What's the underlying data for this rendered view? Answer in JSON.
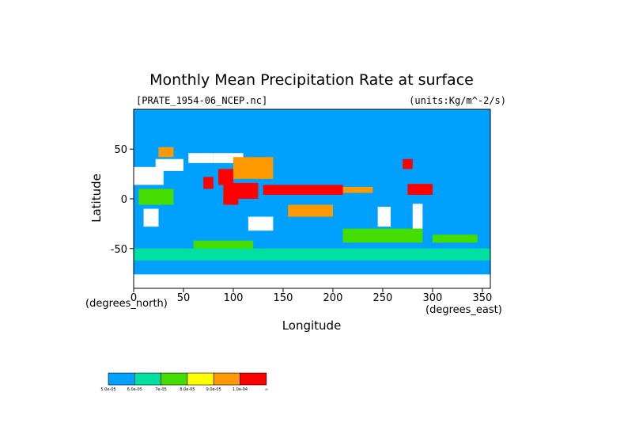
{
  "chart_data": {
    "type": "heatmap",
    "title": "Monthly Mean Precipitation Rate at surface",
    "source_file": "[PRATE_1954-06_NCEP.nc]",
    "units": "(units:Kg/m^-2/s)",
    "xlabel": "Longitude",
    "ylabel": "Latitude",
    "x_unit_label": "(degrees_east)",
    "y_unit_label": "(degrees_north)",
    "xlim": [
      0,
      358
    ],
    "ylim": [
      -90,
      90
    ],
    "x_ticks": [
      "0",
      "50",
      "100",
      "150",
      "200",
      "250",
      "300",
      "350"
    ],
    "x_tick_values": [
      0,
      50,
      100,
      150,
      200,
      250,
      300,
      350
    ],
    "y_ticks": [
      "50",
      "0",
      "-50"
    ],
    "y_tick_values": [
      50,
      0,
      -50
    ],
    "background_color": "#00a0ff",
    "levels": [
      {
        "label": "5.0e-05",
        "color": "#00a0ff"
      },
      {
        "label": "6.0e-05",
        "color": "#00e0a0"
      },
      {
        "label": "7e-05",
        "color": "#44dd00"
      },
      {
        "label": "8.0e-05",
        "color": "#ffff00"
      },
      {
        "label": "9.0e-05",
        "color": "#ff9900"
      },
      {
        "label": "1.0e-04",
        "color": "#ff0000"
      }
    ],
    "legend_end_label": "∞",
    "regions": [
      {
        "x": [
          22,
          50
        ],
        "y": [
          28,
          40
        ],
        "level": "none"
      },
      {
        "x": [
          -5,
          30
        ],
        "y": [
          14,
          32
        ],
        "level": "none"
      },
      {
        "x": [
          55,
          80
        ],
        "y": [
          36,
          46
        ],
        "level": "none"
      },
      {
        "x": [
          80,
          110
        ],
        "y": [
          36,
          46
        ],
        "level": "none"
      },
      {
        "x": [
          10,
          25
        ],
        "y": [
          -28,
          -10
        ],
        "level": "none"
      },
      {
        "x": [
          115,
          140
        ],
        "y": [
          -32,
          -18
        ],
        "level": "none"
      },
      {
        "x": [
          245,
          258
        ],
        "y": [
          -28,
          -8
        ],
        "level": "none"
      },
      {
        "x": [
          280,
          290
        ],
        "y": [
          -30,
          -5
        ],
        "level": "none"
      },
      {
        "x": [
          0,
          358
        ],
        "y": [
          -90,
          -76
        ],
        "level": "none"
      },
      {
        "x": [
          5,
          40
        ],
        "y": [
          -6,
          10
        ],
        "level": "green"
      },
      {
        "x": [
          25,
          40
        ],
        "y": [
          42,
          52
        ],
        "level": "orange"
      },
      {
        "x": [
          70,
          80
        ],
        "y": [
          10,
          22
        ],
        "level": "red"
      },
      {
        "x": [
          85,
          100
        ],
        "y": [
          14,
          30
        ],
        "level": "red"
      },
      {
        "x": [
          100,
          140
        ],
        "y": [
          20,
          42
        ],
        "level": "orange"
      },
      {
        "x": [
          90,
          125
        ],
        "y": [
          0,
          16
        ],
        "level": "red"
      },
      {
        "x": [
          130,
          210
        ],
        "y": [
          4,
          14
        ],
        "level": "red"
      },
      {
        "x": [
          210,
          240
        ],
        "y": [
          6,
          12
        ],
        "level": "orange"
      },
      {
        "x": [
          90,
          105
        ],
        "y": [
          -6,
          2
        ],
        "level": "red"
      },
      {
        "x": [
          155,
          200
        ],
        "y": [
          -18,
          -6
        ],
        "level": "orange"
      },
      {
        "x": [
          270,
          280
        ],
        "y": [
          30,
          40
        ],
        "level": "red"
      },
      {
        "x": [
          275,
          300
        ],
        "y": [
          4,
          15
        ],
        "level": "red"
      },
      {
        "x": [
          210,
          290
        ],
        "y": [
          -44,
          -30
        ],
        "level": "green"
      },
      {
        "x": [
          60,
          120
        ],
        "y": [
          -55,
          -42
        ],
        "level": "green"
      },
      {
        "x": [
          300,
          345
        ],
        "y": [
          -44,
          -36
        ],
        "level": "green"
      },
      {
        "x": [
          0,
          358
        ],
        "y": [
          -62,
          -50
        ],
        "level": "teal"
      }
    ]
  }
}
